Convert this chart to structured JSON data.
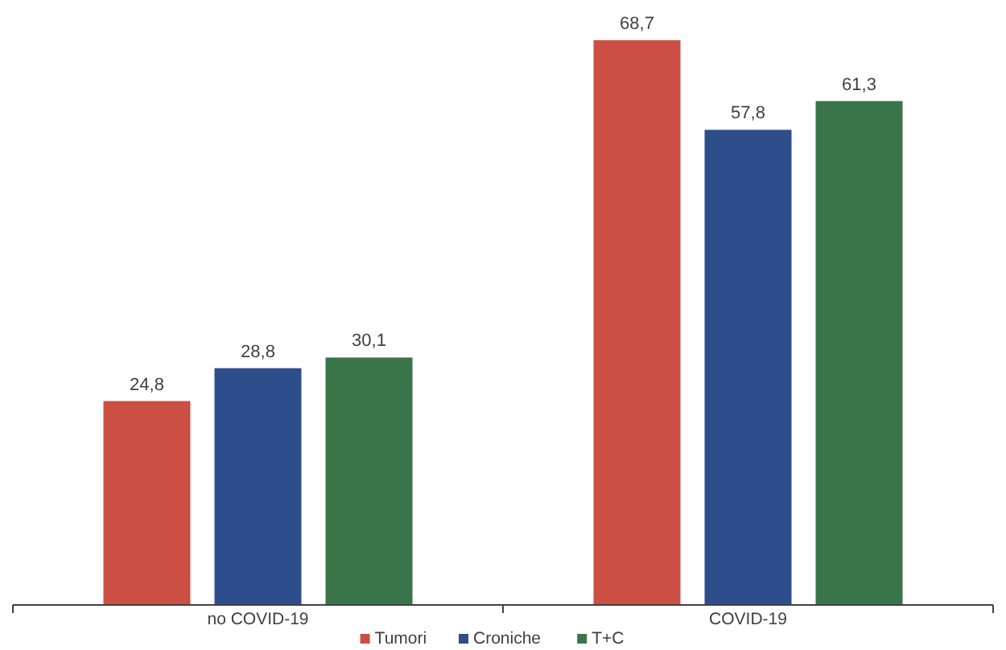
{
  "chart_data": {
    "type": "bar",
    "categories": [
      "no COVID-19",
      "COVID-19"
    ],
    "series": [
      {
        "name": "Tumori",
        "color": "#cb4f43",
        "values": [
          24.8,
          68.7
        ],
        "value_labels": [
          "24,8",
          "68,7"
        ]
      },
      {
        "name": "Croniche",
        "color": "#2e4e8b",
        "values": [
          28.8,
          57.8
        ],
        "value_labels": [
          "28,8",
          "57,8"
        ]
      },
      {
        "name": "T+C",
        "color": "#3a7549",
        "values": [
          30.1,
          61.3
        ],
        "value_labels": [
          "30,1",
          "61,3"
        ]
      }
    ],
    "legend": "bottom"
  }
}
